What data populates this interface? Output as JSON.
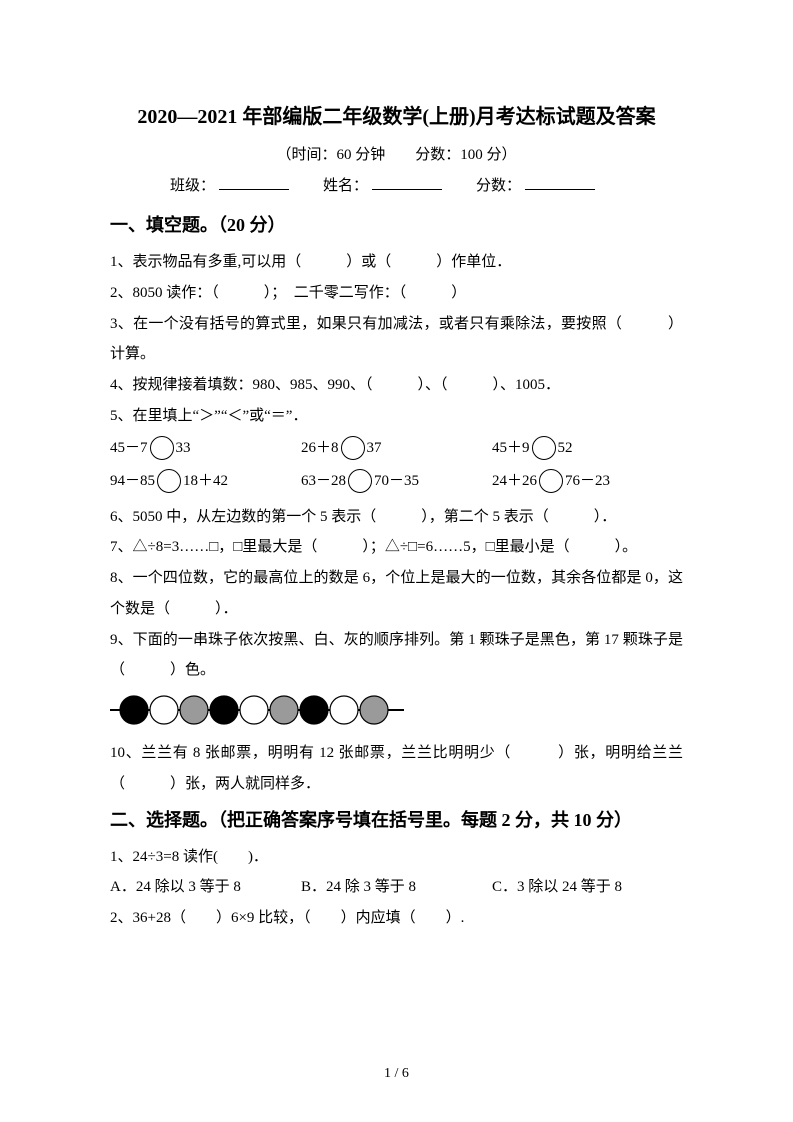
{
  "title": "2020—2021 年部编版二年级数学(上册)月考达标试题及答案",
  "meta": "（时间：60 分钟　　分数：100 分）",
  "fields": {
    "class": "班级：",
    "name": "姓名：",
    "score": "分数："
  },
  "section1": {
    "heading": "一、填空题。（20 分）",
    "q1": "1、表示物品有多重,可以用（　　　）或（　　　）作单位．",
    "q2": "2、8050 读作：（　　　）；　二千零二写作：（　　　）",
    "q3": "3、在一个没有括号的算式里，如果只有加减法，或者只有乘除法，要按照（　　　）计算。",
    "q4": "4、按规律接着填数：980、985、990、（　　　）、（　　　）、1005．",
    "q5": "5、在里填上“＞”“＜”或“＝”．",
    "q5r1": {
      "a": "45－7",
      "av": "33",
      "b": "26＋8",
      "bv": "37",
      "c": "45＋9",
      "cv": "52"
    },
    "q5r2": {
      "a": "94－85",
      "av": "18＋42",
      "b": "63－28",
      "bv": "70－35",
      "c": "24＋26",
      "cv": "76－23"
    },
    "q6": "6、5050 中，从左边数的第一个 5 表示（　　　），第二个 5 表示（　　　）．",
    "q7": "7、△÷8=3……□，□里最大是（　　　）；△÷□=6……5，□里最小是（　　　）。",
    "q8": "8、一个四位数，它的最高位上的数是 6，个位上是最大的一位数，其余各位都是 0，这个数是（　　　）．",
    "q9": "9、下面的一串珠子依次按黑、白、灰的顺序排列。第 1 颗珠子是黑色，第 17 颗珠子是（　　　）色。",
    "q10": "10、兰兰有 8 张邮票，明明有 12 张邮票，兰兰比明明少（　　　）张，明明给兰兰（　　　）张，两人就同样多．"
  },
  "section2": {
    "heading": "二、选择题。（把正确答案序号填在括号里。每题 2 分，共 10 分）",
    "q1": "1、24÷3=8 读作(　　)．",
    "q1_choices": {
      "a": "A．24 除以 3 等于 8",
      "b": "B．24 除 3 等于 8",
      "c": "C．3 除以 24 等于 8"
    },
    "q2": "2、36+28（　　）6×9 比较，（　　）内应填（　　）."
  },
  "beads": {
    "colors": [
      "#000000",
      "#ffffff",
      "#9a9a9a",
      "#000000",
      "#ffffff",
      "#9a9a9a",
      "#000000",
      "#ffffff",
      "#9a9a9a"
    ],
    "stroke": "#000000",
    "line_width": 2,
    "radius": 14,
    "gap": 30
  },
  "pagenum": "1  /  6"
}
